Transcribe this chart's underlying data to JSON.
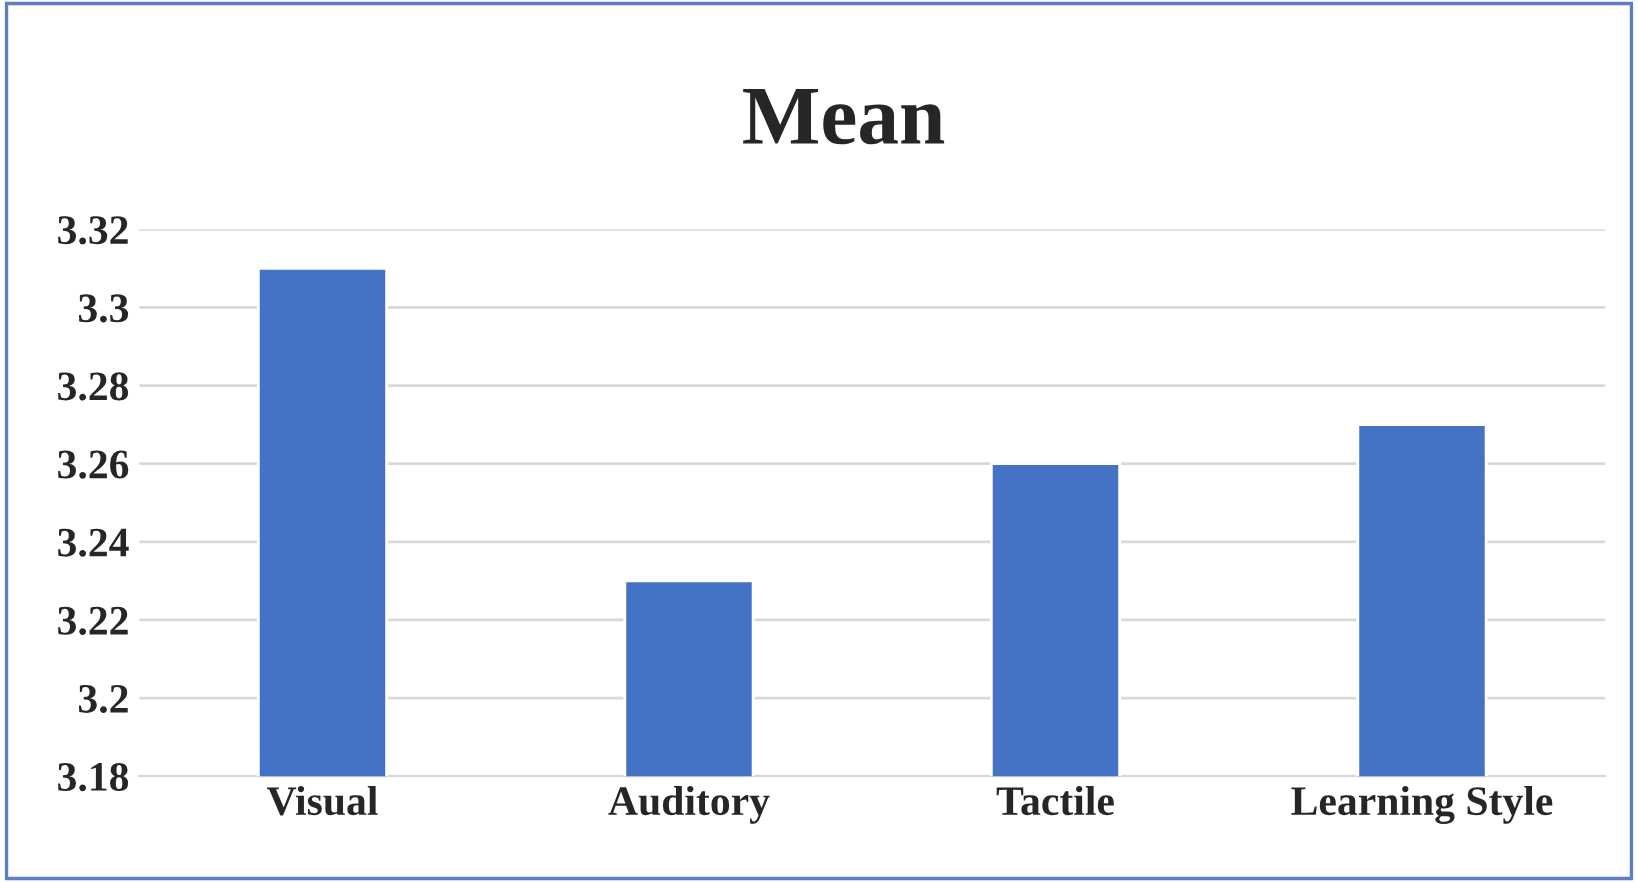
{
  "chart_data": {
    "type": "bar",
    "title": "Mean",
    "categories": [
      "Visual",
      "Auditory",
      "Tactile",
      "Learning Style"
    ],
    "values": [
      3.31,
      3.23,
      3.26,
      3.27
    ],
    "color": "#4472c4",
    "ylim": [
      3.18,
      3.32
    ],
    "yticks": [
      {
        "value": 3.18,
        "label": "3.18"
      },
      {
        "value": 3.2,
        "label": "3.2"
      },
      {
        "value": 3.22,
        "label": "3.22"
      },
      {
        "value": 3.24,
        "label": "3.24"
      },
      {
        "value": 3.26,
        "label": "3.26"
      },
      {
        "value": 3.28,
        "label": "3.28"
      },
      {
        "value": 3.3,
        "label": "3.3"
      },
      {
        "value": 3.32,
        "label": "3.32"
      }
    ],
    "grid": "y",
    "legend": false
  }
}
